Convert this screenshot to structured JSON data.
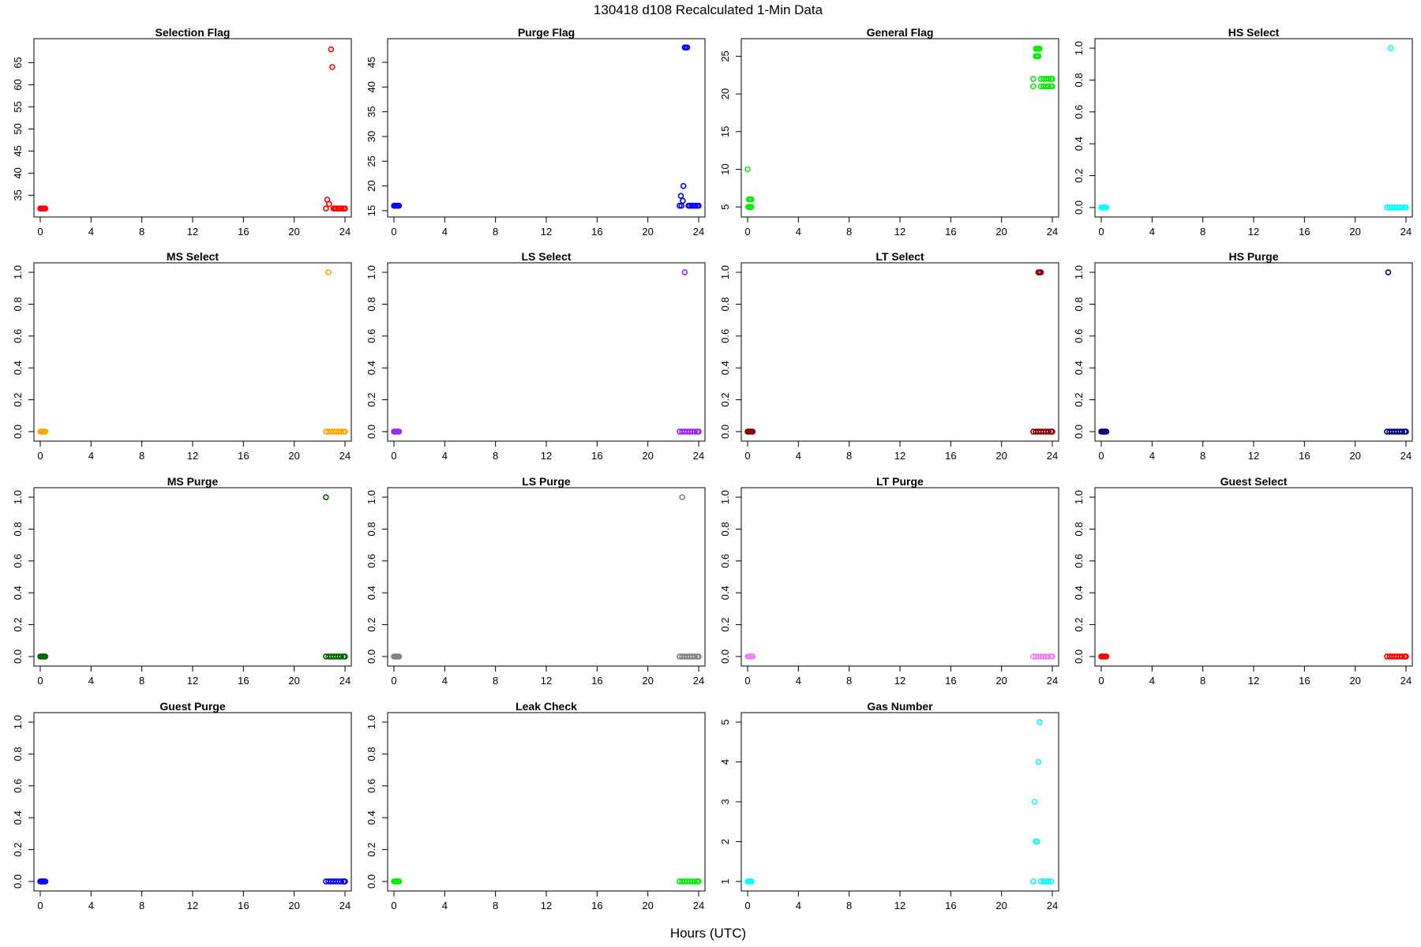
{
  "figure": {
    "title": "130418   d108   Recalculated 1-Min Data",
    "xlabel": "Hours (UTC)"
  },
  "chart_data": [
    {
      "type": "scatter",
      "title": "Selection Flag",
      "color": "#ff0000",
      "xlim": [
        0,
        24
      ],
      "xticks": [
        0,
        4,
        8,
        12,
        16,
        20,
        24
      ],
      "ylim": [
        31.5,
        69
      ],
      "yticks": [
        35,
        40,
        45,
        50,
        55,
        60,
        65
      ],
      "ytick_labels": [
        "35",
        "40",
        "45",
        "50",
        "55",
        "60",
        "65"
      ],
      "x": [
        0,
        0.1,
        0.2,
        0.3,
        0.4,
        22.5,
        22.6,
        22.75,
        22.9,
        23.1,
        23.3,
        23.45,
        23.6,
        23.75,
        23.9,
        24,
        23.0,
        23.2
      ],
      "y": [
        32,
        32,
        32,
        32,
        32,
        32,
        34,
        33,
        68,
        32,
        32,
        32,
        32,
        32,
        32,
        32,
        64,
        32
      ]
    },
    {
      "type": "scatter",
      "title": "Purge Flag",
      "color": "#0000ff",
      "xlim": [
        0,
        24
      ],
      "xticks": [
        0,
        4,
        8,
        12,
        16,
        20,
        24
      ],
      "ylim": [
        15,
        48.5
      ],
      "yticks": [
        15,
        20,
        25,
        30,
        35,
        40,
        45
      ],
      "ytick_labels": [
        "15",
        "20",
        "25",
        "30",
        "35",
        "40",
        "45"
      ],
      "x": [
        0,
        0.1,
        0.2,
        0.3,
        0.4,
        22.5,
        22.6,
        22.65,
        22.75,
        22.8,
        22.9,
        23.0,
        23.1,
        23.2,
        23.3,
        23.45,
        23.6,
        23.75,
        23.9,
        24
      ],
      "y": [
        16,
        16,
        16,
        16,
        16,
        16,
        18,
        16,
        17,
        20,
        48,
        48,
        48,
        16,
        16,
        16,
        16,
        16,
        16,
        16
      ]
    },
    {
      "type": "scatter",
      "title": "General Flag",
      "color": "#00ee00",
      "xlim": [
        0,
        24
      ],
      "xticks": [
        0,
        4,
        8,
        12,
        16,
        20,
        24
      ],
      "ylim": [
        4.5,
        26.5
      ],
      "yticks": [
        5,
        10,
        15,
        20,
        25
      ],
      "ytick_labels": [
        "5",
        "10",
        "15",
        "20",
        "25"
      ],
      "x": [
        0,
        0.05,
        0.1,
        0.2,
        0.3,
        0.1,
        0.2,
        0.3,
        22.5,
        22.5,
        22.7,
        22.8,
        22.9,
        23.0,
        22.7,
        22.8,
        22.9,
        23.1,
        23.3,
        23.5,
        23.7,
        23.9,
        24,
        23.1,
        23.3,
        23.5,
        23.7,
        23.9,
        24
      ],
      "y": [
        10,
        5,
        5,
        5,
        5,
        6,
        6,
        6,
        22,
        21,
        26,
        26,
        26,
        26,
        25,
        25,
        25,
        22,
        22,
        22,
        22,
        22,
        22,
        21,
        21,
        21,
        21,
        21,
        21
      ]
    },
    {
      "type": "scatter",
      "title": "HS Select",
      "color": "#00ffff",
      "xlim": [
        0,
        24
      ],
      "xticks": [
        0,
        4,
        8,
        12,
        16,
        20,
        24
      ],
      "ylim": [
        -0.02,
        1.02
      ],
      "yticks": [
        0,
        0.2,
        0.4,
        0.6,
        0.8,
        1.0
      ],
      "ytick_labels": [
        "0.0",
        "0.2",
        "0.4",
        "0.6",
        "0.8",
        "1.0"
      ],
      "x": [
        0,
        0.1,
        0.2,
        0.3,
        0.4,
        22.5,
        22.7,
        22.9,
        23.1,
        23.3,
        23.5,
        23.7,
        23.9,
        24,
        22.8
      ],
      "y": [
        0,
        0,
        0,
        0,
        0,
        0,
        0,
        0,
        0,
        0,
        0,
        0,
        0,
        0,
        1
      ]
    },
    {
      "type": "scatter",
      "title": "MS Select",
      "color": "#ffa500",
      "xlim": [
        0,
        24
      ],
      "xticks": [
        0,
        4,
        8,
        12,
        16,
        20,
        24
      ],
      "ylim": [
        -0.02,
        1.02
      ],
      "yticks": [
        0,
        0.2,
        0.4,
        0.6,
        0.8,
        1.0
      ],
      "ytick_labels": [
        "0.0",
        "0.2",
        "0.4",
        "0.6",
        "0.8",
        "1.0"
      ],
      "x": [
        0,
        0.1,
        0.2,
        0.3,
        0.4,
        22.5,
        22.7,
        22.9,
        23.1,
        23.3,
        23.5,
        23.7,
        23.9,
        24,
        22.7
      ],
      "y": [
        0,
        0,
        0,
        0,
        0,
        0,
        0,
        0,
        0,
        0,
        0,
        0,
        0,
        0,
        1
      ]
    },
    {
      "type": "scatter",
      "title": "LS Select",
      "color": "#a020f0",
      "xlim": [
        0,
        24
      ],
      "xticks": [
        0,
        4,
        8,
        12,
        16,
        20,
        24
      ],
      "ylim": [
        -0.02,
        1.02
      ],
      "yticks": [
        0,
        0.2,
        0.4,
        0.6,
        0.8,
        1.0
      ],
      "ytick_labels": [
        "0.0",
        "0.2",
        "0.4",
        "0.6",
        "0.8",
        "1.0"
      ],
      "x": [
        0,
        0.1,
        0.2,
        0.3,
        0.4,
        22.5,
        22.7,
        22.9,
        23.1,
        23.3,
        23.5,
        23.7,
        23.9,
        24,
        22.9
      ],
      "y": [
        0,
        0,
        0,
        0,
        0,
        0,
        0,
        0,
        0,
        0,
        0,
        0,
        0,
        0,
        1
      ]
    },
    {
      "type": "scatter",
      "title": "LT Select",
      "color": "#8b0000",
      "xlim": [
        0,
        24
      ],
      "xticks": [
        0,
        4,
        8,
        12,
        16,
        20,
        24
      ],
      "ylim": [
        -0.02,
        1.02
      ],
      "yticks": [
        0,
        0.2,
        0.4,
        0.6,
        0.8,
        1.0
      ],
      "ytick_labels": [
        "0.0",
        "0.2",
        "0.4",
        "0.6",
        "0.8",
        "1.0"
      ],
      "x": [
        0,
        0.1,
        0.2,
        0.3,
        0.4,
        22.5,
        22.7,
        22.9,
        23.1,
        23.3,
        23.5,
        23.7,
        23.9,
        24,
        22.9,
        23.0,
        23.1
      ],
      "y": [
        0,
        0,
        0,
        0,
        0,
        0,
        0,
        0,
        0,
        0,
        0,
        0,
        0,
        0,
        1,
        1,
        1
      ]
    },
    {
      "type": "scatter",
      "title": "HS Purge",
      "color": "#000080",
      "xlim": [
        0,
        24
      ],
      "xticks": [
        0,
        4,
        8,
        12,
        16,
        20,
        24
      ],
      "ylim": [
        -0.02,
        1.02
      ],
      "yticks": [
        0,
        0.2,
        0.4,
        0.6,
        0.8,
        1.0
      ],
      "ytick_labels": [
        "0.0",
        "0.2",
        "0.4",
        "0.6",
        "0.8",
        "1.0"
      ],
      "x": [
        0,
        0.1,
        0.2,
        0.3,
        0.4,
        22.5,
        22.7,
        22.9,
        23.1,
        23.3,
        23.5,
        23.7,
        23.9,
        24,
        22.6
      ],
      "y": [
        0,
        0,
        0,
        0,
        0,
        0,
        0,
        0,
        0,
        0,
        0,
        0,
        0,
        0,
        1
      ]
    },
    {
      "type": "scatter",
      "title": "MS Purge",
      "color": "#006400",
      "xlim": [
        0,
        24
      ],
      "xticks": [
        0,
        4,
        8,
        12,
        16,
        20,
        24
      ],
      "ylim": [
        -0.02,
        1.02
      ],
      "yticks": [
        0,
        0.2,
        0.4,
        0.6,
        0.8,
        1.0
      ],
      "ytick_labels": [
        "0.0",
        "0.2",
        "0.4",
        "0.6",
        "0.8",
        "1.0"
      ],
      "x": [
        0,
        0.1,
        0.2,
        0.3,
        0.4,
        22.5,
        22.7,
        22.9,
        23.1,
        23.3,
        23.5,
        23.7,
        23.9,
        24,
        22.5
      ],
      "y": [
        0,
        0,
        0,
        0,
        0,
        0,
        0,
        0,
        0,
        0,
        0,
        0,
        0,
        0,
        1
      ]
    },
    {
      "type": "scatter",
      "title": "LS Purge",
      "color": "#808080",
      "xlim": [
        0,
        24
      ],
      "xticks": [
        0,
        4,
        8,
        12,
        16,
        20,
        24
      ],
      "ylim": [
        -0.02,
        1.02
      ],
      "yticks": [
        0,
        0.2,
        0.4,
        0.6,
        0.8,
        1.0
      ],
      "ytick_labels": [
        "0.0",
        "0.2",
        "0.4",
        "0.6",
        "0.8",
        "1.0"
      ],
      "x": [
        0,
        0.1,
        0.2,
        0.3,
        0.4,
        22.5,
        22.7,
        22.9,
        23.1,
        23.3,
        23.5,
        23.7,
        23.9,
        24,
        22.7
      ],
      "y": [
        0,
        0,
        0,
        0,
        0,
        0,
        0,
        0,
        0,
        0,
        0,
        0,
        0,
        0,
        1
      ]
    },
    {
      "type": "scatter",
      "title": "LT Purge",
      "color": "#ee82ee",
      "xlim": [
        0,
        24
      ],
      "xticks": [
        0,
        4,
        8,
        12,
        16,
        20,
        24
      ],
      "ylim": [
        -0.02,
        1.02
      ],
      "yticks": [
        0,
        0.2,
        0.4,
        0.6,
        0.8,
        1.0
      ],
      "ytick_labels": [
        "0.0",
        "0.2",
        "0.4",
        "0.6",
        "0.8",
        "1.0"
      ],
      "x": [
        0,
        0.1,
        0.2,
        0.3,
        0.4,
        22.5,
        22.7,
        22.9,
        23.1,
        23.3,
        23.5,
        23.7,
        23.9,
        24
      ],
      "y": [
        0,
        0,
        0,
        0,
        0,
        0,
        0,
        0,
        0,
        0,
        0,
        0,
        0,
        0
      ]
    },
    {
      "type": "scatter",
      "title": "Guest Select",
      "color": "#ff0000",
      "xlim": [
        0,
        24
      ],
      "xticks": [
        0,
        4,
        8,
        12,
        16,
        20,
        24
      ],
      "ylim": [
        -0.02,
        1.02
      ],
      "yticks": [
        0,
        0.2,
        0.4,
        0.6,
        0.8,
        1.0
      ],
      "ytick_labels": [
        "0.0",
        "0.2",
        "0.4",
        "0.6",
        "0.8",
        "1.0"
      ],
      "x": [
        0,
        0.1,
        0.2,
        0.3,
        0.4,
        22.5,
        22.7,
        22.9,
        23.1,
        23.3,
        23.5,
        23.7,
        23.9,
        24
      ],
      "y": [
        0,
        0,
        0,
        0,
        0,
        0,
        0,
        0,
        0,
        0,
        0,
        0,
        0,
        0
      ]
    },
    {
      "type": "scatter",
      "title": "Guest Purge",
      "color": "#0000ff",
      "xlim": [
        0,
        24
      ],
      "xticks": [
        0,
        4,
        8,
        12,
        16,
        20,
        24
      ],
      "ylim": [
        -0.02,
        1.02
      ],
      "yticks": [
        0,
        0.2,
        0.4,
        0.6,
        0.8,
        1.0
      ],
      "ytick_labels": [
        "0.0",
        "0.2",
        "0.4",
        "0.6",
        "0.8",
        "1.0"
      ],
      "x": [
        0,
        0.1,
        0.2,
        0.3,
        0.4,
        22.5,
        22.7,
        22.9,
        23.1,
        23.3,
        23.5,
        23.7,
        23.9,
        24
      ],
      "y": [
        0,
        0,
        0,
        0,
        0,
        0,
        0,
        0,
        0,
        0,
        0,
        0,
        0,
        0
      ]
    },
    {
      "type": "scatter",
      "title": "Leak Check",
      "color": "#00ee00",
      "xlim": [
        0,
        24
      ],
      "xticks": [
        0,
        4,
        8,
        12,
        16,
        20,
        24
      ],
      "ylim": [
        -0.02,
        1.02
      ],
      "yticks": [
        0,
        0.2,
        0.4,
        0.6,
        0.8,
        1.0
      ],
      "ytick_labels": [
        "0.0",
        "0.2",
        "0.4",
        "0.6",
        "0.8",
        "1.0"
      ],
      "x": [
        0,
        0.1,
        0.2,
        0.3,
        0.4,
        22.5,
        22.7,
        22.9,
        23.1,
        23.3,
        23.5,
        23.7,
        23.9,
        24
      ],
      "y": [
        0,
        0,
        0,
        0,
        0,
        0,
        0,
        0,
        0,
        0,
        0,
        0,
        0,
        0
      ]
    },
    {
      "type": "scatter",
      "title": "Gas Number",
      "color": "#00ffff",
      "xlim": [
        0,
        24
      ],
      "xticks": [
        0,
        4,
        8,
        12,
        16,
        20,
        24
      ],
      "ylim": [
        0.92,
        5.08
      ],
      "yticks": [
        1,
        2,
        3,
        4,
        5
      ],
      "ytick_labels": [
        "1",
        "2",
        "3",
        "4",
        "5"
      ],
      "x": [
        0,
        0.1,
        0.2,
        0.3,
        22.5,
        22.6,
        22.8,
        23.0,
        23.1,
        23.3,
        23.5,
        23.7,
        23.9,
        22.7,
        22.9
      ],
      "y": [
        1,
        1,
        1,
        1,
        1,
        3,
        2,
        5,
        1,
        1,
        1,
        1,
        1,
        2,
        4
      ]
    }
  ]
}
